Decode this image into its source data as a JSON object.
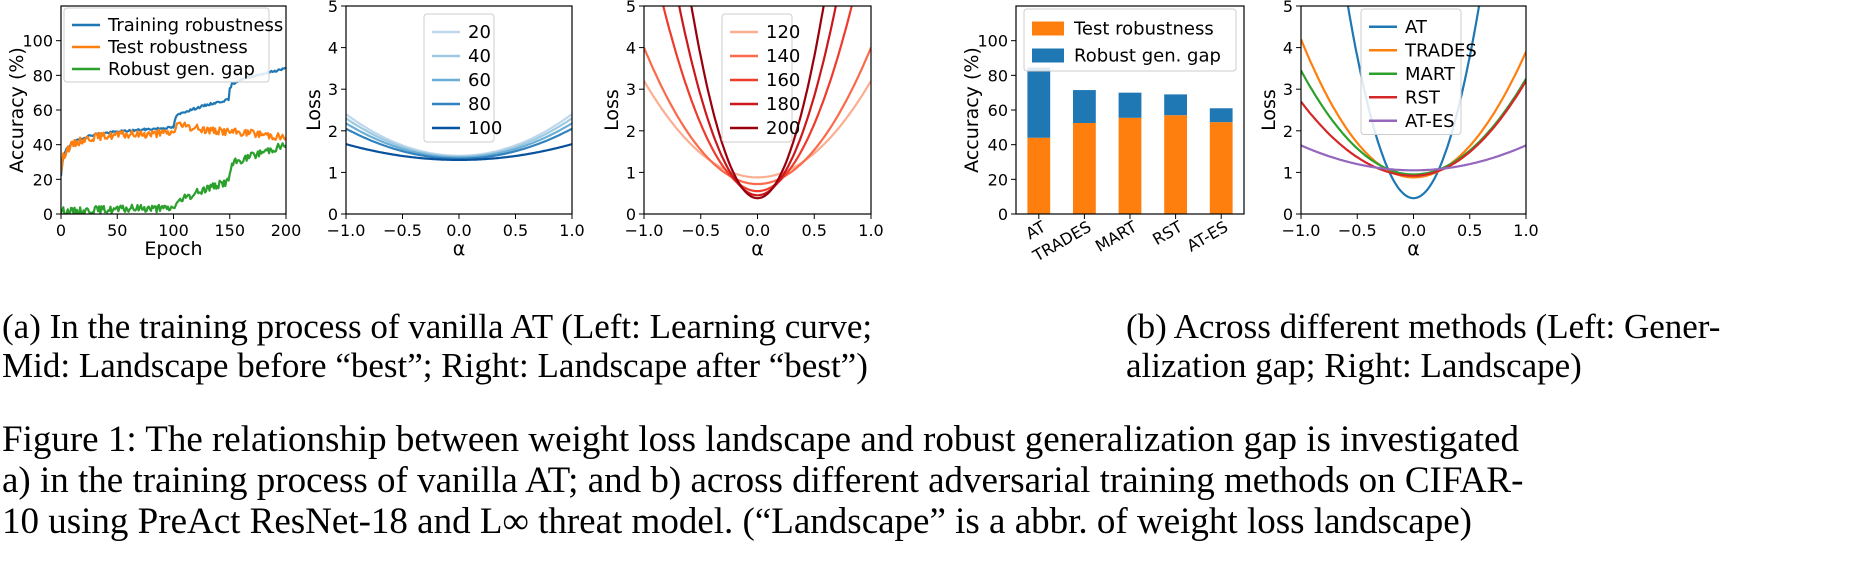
{
  "chart_data": [
    {
      "type": "line",
      "xlabel": "Epoch",
      "ylabel": "Accuracy (%)",
      "xlim": [
        0,
        200
      ],
      "ylim": [
        0,
        120
      ],
      "xticks": [
        "0",
        "50",
        "100",
        "150",
        "200"
      ],
      "yticks": [
        "0",
        "20",
        "40",
        "60",
        "80",
        "100"
      ],
      "legend_position": "top-left",
      "series": [
        {
          "name": "Training robustness",
          "color": "#1f77b4",
          "x": [
            0,
            2,
            5,
            10,
            20,
            30,
            50,
            70,
            90,
            100,
            102,
            105,
            110,
            120,
            130,
            140,
            149,
            150,
            152,
            155,
            160,
            170,
            180,
            190,
            200
          ],
          "y": [
            22,
            33,
            38,
            41,
            44,
            46,
            47.5,
            48.5,
            49.5,
            50,
            56,
            57.5,
            59,
            61,
            63,
            64.5,
            66,
            72,
            75,
            76,
            77.5,
            79.5,
            81,
            82.5,
            84
          ]
        },
        {
          "name": "Test robustness",
          "color": "#ff7f0e",
          "x": [
            0,
            2,
            5,
            10,
            20,
            30,
            50,
            70,
            90,
            100,
            103,
            110,
            120,
            130,
            140,
            150,
            160,
            170,
            180,
            190,
            200
          ],
          "y": [
            25,
            33,
            37,
            40,
            43,
            44.5,
            45.5,
            46,
            46.5,
            47,
            52,
            50.5,
            49.5,
            48.5,
            48,
            47.5,
            47,
            46.5,
            46,
            45,
            44
          ]
        },
        {
          "name": "Robust gen. gap",
          "color": "#2ca02c",
          "x": [
            0,
            5,
            10,
            20,
            30,
            50,
            70,
            90,
            100,
            102,
            105,
            110,
            120,
            130,
            140,
            149,
            150,
            152,
            155,
            160,
            170,
            180,
            190,
            200
          ],
          "y": [
            2,
            1.5,
            1.5,
            2,
            2.5,
            2.5,
            3.5,
            3,
            3.5,
            6,
            7,
            9,
            12,
            15,
            17,
            19,
            24,
            28,
            30,
            31,
            33.5,
            36,
            38,
            40
          ]
        }
      ]
    },
    {
      "type": "line",
      "xlabel": "α",
      "ylabel": "Loss",
      "xlim": [
        -1.0,
        1.0
      ],
      "ylim": [
        0,
        5
      ],
      "xticks": [
        "−1.0",
        "−0.5",
        "0.0",
        "0.5",
        "1.0"
      ],
      "yticks": [
        "0",
        "1",
        "2",
        "3",
        "4",
        "5"
      ],
      "legend_position": "top-center",
      "series": [
        {
          "name": "20",
          "color": "#bfd7ed",
          "center": 1.4,
          "edge": 2.4
        },
        {
          "name": "40",
          "color": "#9ecae1",
          "center": 1.38,
          "edge": 2.3
        },
        {
          "name": "60",
          "color": "#6baed6",
          "center": 1.36,
          "edge": 2.18
        },
        {
          "name": "80",
          "color": "#3182bd",
          "center": 1.33,
          "edge": 2.05
        },
        {
          "name": "100",
          "color": "#08519c",
          "center": 1.3,
          "edge": 1.68
        }
      ]
    },
    {
      "type": "line",
      "xlabel": "α",
      "ylabel": "Loss",
      "xlim": [
        -1.0,
        1.0
      ],
      "ylim": [
        0,
        5
      ],
      "xticks": [
        "−1.0",
        "−0.5",
        "0.0",
        "0.5",
        "1.0"
      ],
      "yticks": [
        "0",
        "1",
        "2",
        "3",
        "4",
        "5"
      ],
      "legend_position": "top-center",
      "series": [
        {
          "name": "120",
          "color": "#fcae91",
          "center": 0.88,
          "edge": 3.2
        },
        {
          "name": "140",
          "color": "#fb6a4a",
          "center": 0.72,
          "edge": 4.0
        },
        {
          "name": "160",
          "color": "#ef3b2c",
          "center": 0.55,
          "edge": 7.0
        },
        {
          "name": "180",
          "color": "#cb181d",
          "center": 0.45,
          "edge": 10.0
        },
        {
          "name": "200",
          "color": "#99000d",
          "center": 0.38,
          "edge": 14.0
        }
      ]
    },
    {
      "type": "bar",
      "ylabel": "Accuracy (%)",
      "ylim": [
        0,
        120
      ],
      "yticks": [
        "0",
        "20",
        "40",
        "60",
        "80",
        "100"
      ],
      "categories": [
        "AT",
        "TRADES",
        "MART",
        "RST",
        "AT-ES"
      ],
      "legend_position": "top",
      "series": [
        {
          "name": "Test robustness",
          "color": "#ff7f0e",
          "values": [
            44,
            52.5,
            55.5,
            57,
            53
          ]
        },
        {
          "name": "Robust gen. gap",
          "color": "#1f77b4",
          "values": [
            40.5,
            19,
            14.5,
            12,
            8
          ]
        }
      ]
    },
    {
      "type": "line",
      "xlabel": "α",
      "ylabel": "Loss",
      "xlim": [
        -1.0,
        1.0
      ],
      "ylim": [
        0,
        5
      ],
      "xticks": [
        "−1.0",
        "−0.5",
        "0.0",
        "0.5",
        "1.0"
      ],
      "yticks": [
        "0",
        "1",
        "2",
        "3",
        "4",
        "5"
      ],
      "legend_position": "top-center",
      "series": [
        {
          "name": "AT",
          "color": "#1f77b4",
          "center": 0.38,
          "edge": 14.0
        },
        {
          "name": "TRADES",
          "color": "#ff7f0e",
          "center": 0.88,
          "edge": 4.2,
          "edge_right": 3.9
        },
        {
          "name": "MART",
          "color": "#2ca02c",
          "center": 0.95,
          "edge": 3.45,
          "edge_right": 3.25
        },
        {
          "name": "RST",
          "color": "#d62728",
          "center": 0.92,
          "edge": 2.7,
          "edge_right": 3.2
        },
        {
          "name": "AT-ES",
          "color": "#9467bd",
          "center": 1.05,
          "edge": 1.65
        }
      ]
    }
  ],
  "captions": {
    "a_line1": "(a) In the training process of vanilla AT (Left: Learning curve;",
    "a_line2": "Mid: Landscape before “best”; Right: Landscape after “best”)",
    "b_line1": "(b) Across different methods (Left: Gener-",
    "b_line2": "alization gap; Right: Landscape)",
    "fig_line1": "Figure 1: The relationship between weight loss landscape and robust generalization gap is investigated",
    "fig_line2": "a) in the training process of vanilla AT; and b) across different adversarial training methods on CIFAR-",
    "fig_line3": "10 using PreAct ResNet-18 and L∞ threat model. (“Landscape” is a abbr. of weight loss landscape)"
  }
}
